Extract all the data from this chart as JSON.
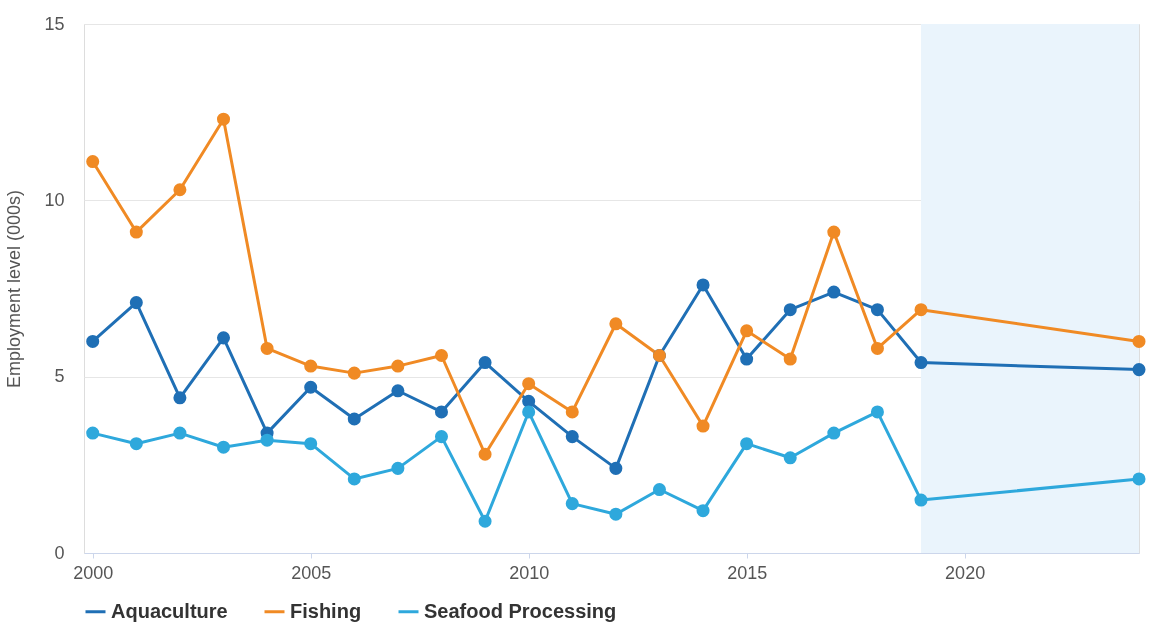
{
  "chart_data": {
    "type": "line",
    "ylabel": "Employment level (000s)",
    "x": [
      2000,
      2001,
      2002,
      2003,
      2004,
      2005,
      2006,
      2007,
      2008,
      2009,
      2010,
      2011,
      2012,
      2013,
      2014,
      2015,
      2016,
      2017,
      2018,
      2019,
      2024
    ],
    "series": [
      {
        "name": "Aquaculture",
        "color": "#1f6fb5",
        "values": [
          6.0,
          7.1,
          4.4,
          6.1,
          3.4,
          4.7,
          3.8,
          4.6,
          4.0,
          5.4,
          4.3,
          3.3,
          2.4,
          5.6,
          7.6,
          5.5,
          6.9,
          7.4,
          6.9,
          5.4,
          5.2
        ]
      },
      {
        "name": "Fishing",
        "color": "#f08a24",
        "values": [
          11.1,
          9.1,
          10.3,
          12.3,
          5.8,
          5.3,
          5.1,
          5.3,
          5.6,
          2.8,
          4.8,
          4.0,
          6.5,
          5.6,
          3.6,
          6.3,
          5.5,
          9.1,
          5.8,
          6.9,
          6.0
        ]
      },
      {
        "name": "Seafood Processing",
        "color": "#2ea8dc",
        "values": [
          3.4,
          3.1,
          3.4,
          3.0,
          3.2,
          3.1,
          2.1,
          2.4,
          3.3,
          0.9,
          4.0,
          1.4,
          1.1,
          1.8,
          1.2,
          3.1,
          2.7,
          3.4,
          4.0,
          1.5,
          2.1
        ]
      }
    ],
    "xlim": [
      1999.8,
      2024
    ],
    "xticks": [
      2000,
      2005,
      2010,
      2015,
      2020
    ],
    "ylim": [
      0,
      15
    ],
    "yticks": [
      0,
      5,
      10,
      15
    ],
    "bands": [
      {
        "axis": "x",
        "from": 2019,
        "to": 2024,
        "color": "#eaf4fc"
      }
    ],
    "grid": "y",
    "legend": "bottom",
    "marker": "circle",
    "line_style": "solid"
  }
}
